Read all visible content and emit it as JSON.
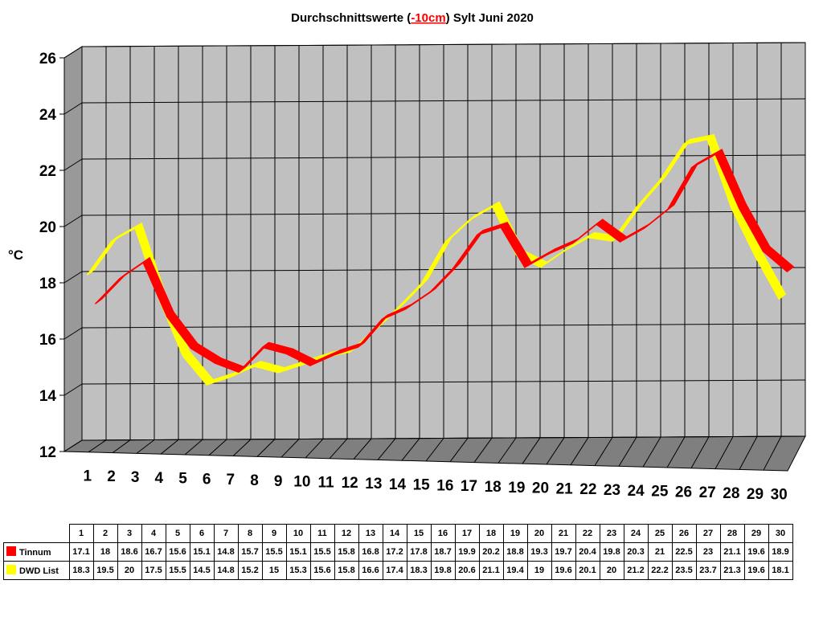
{
  "chart_data": {
    "type": "line",
    "title": {
      "prefix": "Durchschnittswerte (",
      "highlight": "-10cm",
      "suffix": ") Sylt Juni 2020"
    },
    "ylabel": "°C",
    "ylim": [
      12,
      26
    ],
    "yticks": [
      "12",
      "14",
      "16",
      "18",
      "20",
      "22",
      "24",
      "26"
    ],
    "categories": [
      "1",
      "2",
      "3",
      "4",
      "5",
      "6",
      "7",
      "8",
      "9",
      "10",
      "11",
      "12",
      "13",
      "14",
      "15",
      "16",
      "17",
      "18",
      "19",
      "20",
      "21",
      "22",
      "23",
      "24",
      "25",
      "26",
      "27",
      "28",
      "29",
      "30"
    ],
    "grid": true,
    "series": [
      {
        "name": "Tinnum",
        "color": "#ff0000",
        "values": [
          17.1,
          18,
          18.6,
          16.7,
          15.6,
          15.1,
          14.8,
          15.7,
          15.5,
          15.1,
          15.5,
          15.8,
          16.8,
          17.2,
          17.8,
          18.7,
          19.9,
          20.2,
          18.8,
          19.3,
          19.7,
          20.4,
          19.8,
          20.3,
          21,
          22.5,
          23,
          21.1,
          19.6,
          18.9
        ]
      },
      {
        "name": "DWD List",
        "color": "#ffff00",
        "values": [
          18.3,
          19.5,
          20,
          17.5,
          15.5,
          14.5,
          14.8,
          15.2,
          15,
          15.3,
          15.6,
          15.8,
          16.6,
          17.4,
          18.3,
          19.8,
          20.6,
          21.1,
          19.4,
          19,
          19.6,
          20.1,
          20,
          21.2,
          22.2,
          23.5,
          23.7,
          21.3,
          19.6,
          18.1
        ]
      }
    ],
    "colors": {
      "wall": "#c0c0c0",
      "side": "#999999",
      "floor": "#7f7f7f",
      "highlight": "#ff0000"
    }
  }
}
